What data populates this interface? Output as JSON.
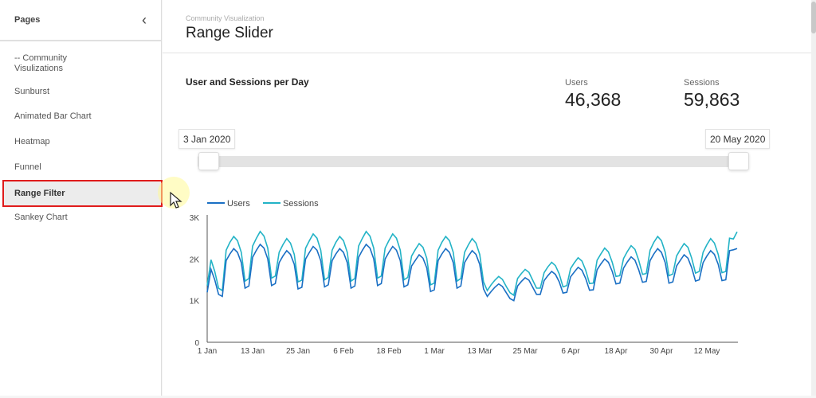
{
  "sidebar": {
    "title": "Pages",
    "items": [
      {
        "label": "-- Community Visulizations"
      },
      {
        "label": "Sunburst"
      },
      {
        "label": "Animated Bar Chart"
      },
      {
        "label": "Heatmap"
      },
      {
        "label": "Funnel"
      },
      {
        "label": "Range Filter",
        "selected": true
      },
      {
        "label": "Sankey Chart"
      }
    ]
  },
  "header": {
    "breadcrumb": "Community Visualization",
    "title": "Range Slider"
  },
  "chart_title": "User and Sessions per Day",
  "kpis": [
    {
      "label": "Users",
      "value": "46,368"
    },
    {
      "label": "Sessions",
      "value": "59,863"
    }
  ],
  "slider": {
    "start": "3 Jan 2020",
    "end": "20 May 2020"
  },
  "colors": {
    "users": "#1a6fc4",
    "sessions": "#22b3c6",
    "highlight": "#e01b1b"
  },
  "chart_data": {
    "type": "line",
    "x_start": "2020-01-01",
    "x_end": "2020-05-20",
    "x_step": "1 day",
    "xticks": [
      "1 Jan",
      "13 Jan",
      "25 Jan",
      "6 Feb",
      "18 Feb",
      "1 Mar",
      "13 Mar",
      "25 Mar",
      "6 Apr",
      "18 Apr",
      "30 Apr",
      "12 May"
    ],
    "yticks": [
      "0",
      "1K",
      "2K",
      "3K"
    ],
    "ylim": [
      0,
      3000
    ],
    "grid": false,
    "legend": "top-left",
    "series": [
      {
        "name": "Users",
        "values": [
          1200,
          1750,
          1500,
          1150,
          1100,
          1960,
          2120,
          2250,
          2160,
          1910,
          1300,
          1350,
          2040,
          2210,
          2350,
          2260,
          2000,
          1360,
          1410,
          1910,
          2070,
          2200,
          2110,
          1870,
          1280,
          1320,
          2000,
          2160,
          2300,
          2210,
          1960,
          1330,
          1380,
          1960,
          2120,
          2250,
          2160,
          1910,
          1300,
          1350,
          2040,
          2210,
          2350,
          2260,
          2000,
          1360,
          1410,
          2000,
          2160,
          2300,
          2210,
          1960,
          1330,
          1380,
          1830,
          1970,
          2100,
          2020,
          1790,
          1220,
          1260,
          1960,
          2120,
          2250,
          2160,
          1910,
          1300,
          1350,
          1910,
          2070,
          2200,
          2110,
          1870,
          1280,
          1100,
          1220,
          1320,
          1400,
          1340,
          1190,
          1050,
          1000,
          1350,
          1460,
          1550,
          1490,
          1320,
          1150,
          1150,
          1480,
          1600,
          1700,
          1630,
          1450,
          1180,
          1200,
          1570,
          1690,
          1800,
          1730,
          1530,
          1250,
          1260,
          1740,
          1880,
          2000,
          1920,
          1700,
          1400,
          1420,
          1780,
          1930,
          2050,
          1970,
          1740,
          1440,
          1460,
          1960,
          2120,
          2250,
          2160,
          1910,
          1420,
          1450,
          1830,
          1970,
          2100,
          2020,
          1790,
          1470,
          1500,
          1910,
          2070,
          2200,
          2110,
          1870,
          1480,
          1500,
          2200,
          2220,
          2250
        ]
      },
      {
        "name": "Sessions",
        "values": [
          1360,
          1980,
          1700,
          1300,
          1240,
          2210,
          2400,
          2540,
          2440,
          2160,
          1470,
          1530,
          2310,
          2500,
          2660,
          2550,
          2260,
          1540,
          1590,
          2160,
          2340,
          2490,
          2380,
          2110,
          1450,
          1490,
          2260,
          2440,
          2600,
          2500,
          2210,
          1500,
          1560,
          2210,
          2400,
          2540,
          2440,
          2160,
          1470,
          1530,
          2310,
          2500,
          2660,
          2550,
          2260,
          1540,
          1590,
          2260,
          2440,
          2600,
          2500,
          2210,
          1500,
          1560,
          2070,
          2230,
          2370,
          2280,
          2020,
          1380,
          1420,
          2210,
          2400,
          2540,
          2440,
          2160,
          1470,
          1530,
          2160,
          2340,
          2490,
          2380,
          2110,
          1450,
          1240,
          1380,
          1490,
          1580,
          1510,
          1340,
          1190,
          1130,
          1530,
          1650,
          1750,
          1680,
          1490,
          1300,
          1300,
          1670,
          1810,
          1920,
          1840,
          1640,
          1330,
          1360,
          1770,
          1910,
          2030,
          1950,
          1730,
          1410,
          1420,
          1970,
          2120,
          2260,
          2170,
          1920,
          1580,
          1600,
          2010,
          2180,
          2320,
          2230,
          1970,
          1630,
          1650,
          2210,
          2400,
          2540,
          2440,
          2160,
          1600,
          1640,
          2070,
          2230,
          2370,
          2280,
          2020,
          1660,
          1700,
          2160,
          2340,
          2490,
          2380,
          2110,
          1670,
          1700,
          2500,
          2480,
          2650
        ]
      }
    ]
  }
}
